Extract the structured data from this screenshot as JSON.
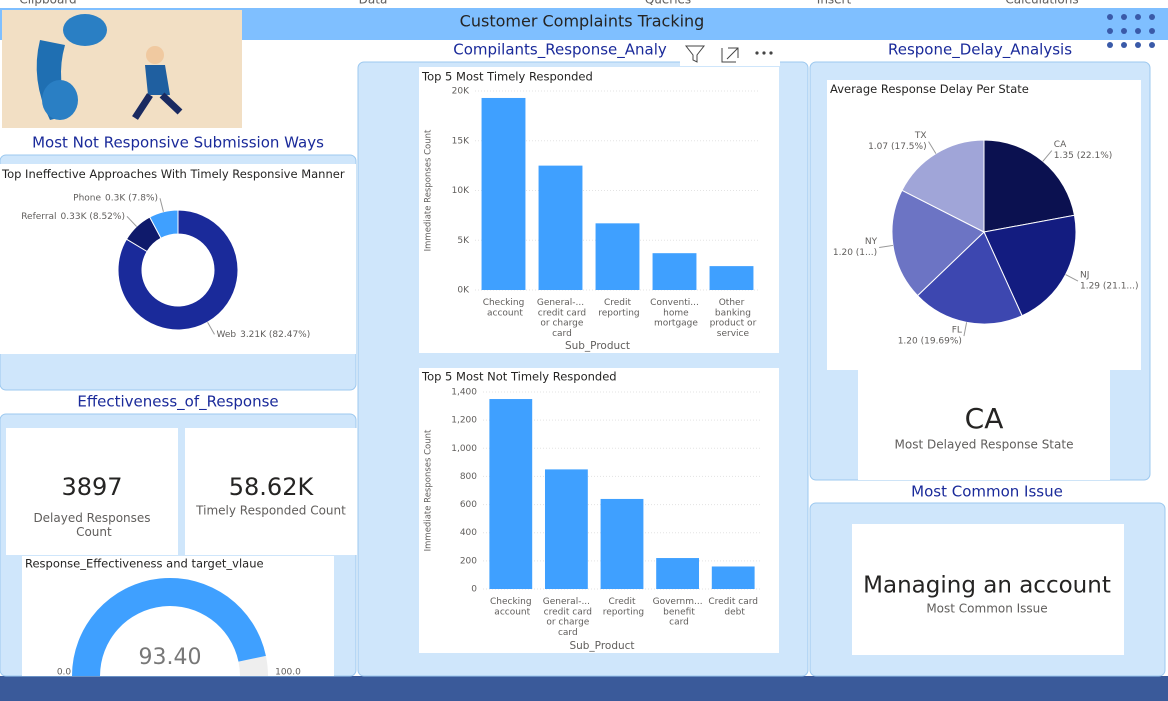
{
  "ribbon": [
    "Clipboard",
    "Data",
    "Queries",
    "Insert",
    "Calculations"
  ],
  "title": "Customer Complaints Tracking",
  "sections": {
    "submission": "Most Not Responsive Submission Ways",
    "effectiveness": "Effectiveness_of_Response",
    "response": "Compilants_Response_Analy",
    "delay": "Respone_Delay_Analysis",
    "issue": "Most Common Issue"
  },
  "submission_chart": {
    "type": "donut",
    "title": "Top Ineffective Approaches With Timely Responsive Manner",
    "categories": [
      "Web",
      "Referral",
      "Phone"
    ],
    "values": [
      3210,
      330,
      300
    ],
    "value_labels": [
      "3.21K (82.47%)",
      "0.33K (8.52%)",
      "0.3K (7.8%)"
    ],
    "colors": [
      "#1a2a9a",
      "#0f1a6b",
      "#3fa0ff"
    ]
  },
  "cards": [
    {
      "value": 3897,
      "label": "Delayed Responses Count"
    },
    {
      "value": "58.62K",
      "label": "Timely Responded Count"
    }
  ],
  "gauge": {
    "type": "gauge",
    "title": "Response_Effectiveness and target_vlaue",
    "value": 93.4,
    "value_label": "93.40",
    "min": {
      "value": 0,
      "label": "0.0"
    },
    "max": {
      "value": 100,
      "label": "100.0"
    },
    "color": "#3fa0ff"
  },
  "timely_chart": {
    "type": "bar",
    "title": "Top 5 Most Timely Responded",
    "x_label": "Sub_Product",
    "y_label": "Immediate Responses Count",
    "categories": [
      "Checking account",
      "General-... credit card or charge card",
      "Credit reporting",
      "Conventi... home mortgage",
      "Other banking product or service"
    ],
    "values": [
      19300,
      12500,
      6700,
      3700,
      2400
    ],
    "color": "#3fa0ff",
    "ylim": [
      0,
      20000
    ],
    "yticks": [
      {
        "value": 0,
        "label": "0K"
      },
      {
        "value": 5000,
        "label": "5K"
      },
      {
        "value": 10000,
        "label": "10K"
      },
      {
        "value": 15000,
        "label": "15K"
      },
      {
        "value": 20000,
        "label": "20K"
      }
    ],
    "grid": true
  },
  "not_timely_chart": {
    "type": "bar",
    "title": "Top 5 Most Not Timely Responded",
    "x_label": "Sub_Product",
    "y_label": "Immediate Responses Count",
    "categories": [
      "Checking account",
      "General-... credit card or charge card",
      "Credit reporting",
      "Governm... benefit card",
      "Credit card debt"
    ],
    "values": [
      1350,
      850,
      640,
      220,
      160
    ],
    "color": "#3fa0ff",
    "ylim": [
      0,
      1400
    ],
    "yticks": [
      0,
      200,
      400,
      600,
      800,
      {
        "value": 1000,
        "label": "1,000"
      },
      {
        "value": 1200,
        "label": "1,200"
      },
      {
        "value": 1400,
        "label": "1,400"
      }
    ],
    "grid": true
  },
  "delay_chart": {
    "type": "pie",
    "title": "Average Response Delay Per State",
    "categories": [
      "CA",
      "NJ",
      "FL",
      "NY",
      "TX"
    ],
    "values": [
      1.35,
      1.29,
      1.2,
      1.2,
      1.07
    ],
    "value_labels": [
      "1.35 (22.1%)",
      "1.29 (21.1...)",
      "1.20 (19.69%)",
      "1.20 (1...)",
      "1.07 (17.5%)"
    ],
    "colors": [
      "#0b1150",
      "#131c80",
      "#3d47b0",
      "#6c74c4",
      "#a0a5d8"
    ]
  },
  "delayed_state": {
    "value": "CA",
    "label": "Most Delayed Response State"
  },
  "common_issue": {
    "value": "Managing an account",
    "label": "Most Common Issue"
  }
}
